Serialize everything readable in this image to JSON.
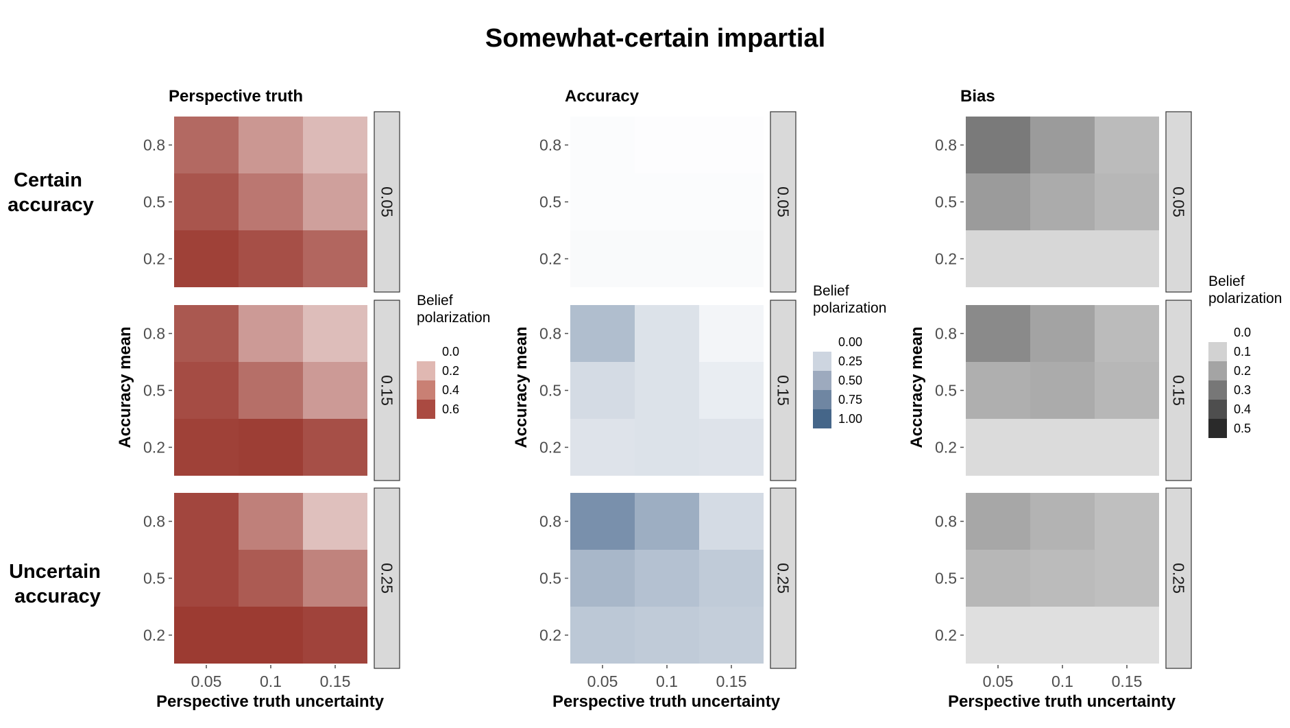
{
  "title": "Somewhat-certain impartial",
  "row_labels": [
    {
      "line1": "Certain",
      "line2": "accuracy"
    },
    {
      "line1": "Uncertain",
      "line2": "accuracy"
    }
  ],
  "chart_data": [
    {
      "type": "heatmap",
      "title": "Perspective truth",
      "xlabel": "Perspective truth uncertainty",
      "ylabel": "Accuracy mean",
      "x": [
        "0.05",
        "0.1",
        "0.15"
      ],
      "y": [
        "0.8",
        "0.5",
        "0.2"
      ],
      "facets": [
        "0.05",
        "0.15",
        "0.25"
      ],
      "legend": {
        "title_line1": "Belief",
        "title_line2": "polarization",
        "breaks": [
          "0.0",
          "0.2",
          "0.4",
          "0.6"
        ],
        "colors": [
          "#ffffff",
          "#e0b8b2",
          "#c98074",
          "#aa4a41"
        ]
      },
      "color_low": "#ffffff",
      "color_high": "#99352c",
      "vmin": 0,
      "vmax": 0.7,
      "values": [
        [
          [
            0.52,
            0.36,
            0.24
          ],
          [
            0.59,
            0.47,
            0.33
          ],
          [
            0.66,
            0.61,
            0.53
          ]
        ],
        [
          [
            0.58,
            0.35,
            0.23
          ],
          [
            0.62,
            0.5,
            0.35
          ],
          [
            0.66,
            0.67,
            0.61
          ]
        ],
        [
          [
            0.64,
            0.44,
            0.22
          ],
          [
            0.64,
            0.57,
            0.43
          ],
          [
            0.68,
            0.68,
            0.65
          ]
        ]
      ]
    },
    {
      "type": "heatmap",
      "title": "Accuracy",
      "xlabel": "Perspective truth uncertainty",
      "ylabel": "Accuracy mean",
      "x": [
        "0.05",
        "0.1",
        "0.15"
      ],
      "y": [
        "0.8",
        "0.5",
        "0.2"
      ],
      "facets": [
        "0.05",
        "0.15",
        "0.25"
      ],
      "legend": {
        "title_line1": "Belief",
        "title_line2": "polarization",
        "breaks": [
          "0.00",
          "0.25",
          "0.50",
          "0.75",
          "1.00"
        ],
        "colors": [
          "#ffffff",
          "#cdd5e0",
          "#9daabe",
          "#6f86a2",
          "#456689"
        ]
      },
      "color_low": "#ffffff",
      "color_high": "#3a5c85",
      "vmin": 0,
      "vmax": 1.0,
      "values": [
        [
          [
            0.02,
            0.01,
            0.01
          ],
          [
            0.02,
            0.02,
            0.02
          ],
          [
            0.03,
            0.03,
            0.03
          ]
        ],
        [
          [
            0.4,
            0.18,
            0.06
          ],
          [
            0.22,
            0.18,
            0.11
          ],
          [
            0.17,
            0.18,
            0.17
          ]
        ],
        [
          [
            0.68,
            0.5,
            0.22
          ],
          [
            0.44,
            0.38,
            0.32
          ],
          [
            0.34,
            0.32,
            0.3
          ]
        ]
      ]
    },
    {
      "type": "heatmap",
      "title": "Bias",
      "xlabel": "Perspective truth uncertainty",
      "ylabel": "Accuracy mean",
      "x": [
        "0.05",
        "0.1",
        "0.15"
      ],
      "y": [
        "0.8",
        "0.5",
        "0.2"
      ],
      "facets": [
        "0.05",
        "0.15",
        "0.25"
      ],
      "legend": {
        "title_line1": "Belief",
        "title_line2": "polarization",
        "breaks": [
          "0.0",
          "0.1",
          "0.2",
          "0.3",
          "0.4",
          "0.5"
        ],
        "colors": [
          "#ffffff",
          "#d2d2d2",
          "#a4a4a4",
          "#777777",
          "#4e4e4e",
          "#2a2a2a"
        ]
      },
      "color_low": "#ffffff",
      "color_high": "#222222",
      "vmin": 0,
      "vmax": 0.55,
      "values": [
        [
          [
            0.33,
            0.25,
            0.17
          ],
          [
            0.25,
            0.21,
            0.18
          ],
          [
            0.1,
            0.1,
            0.1
          ]
        ],
        [
          [
            0.29,
            0.23,
            0.17
          ],
          [
            0.2,
            0.21,
            0.18
          ],
          [
            0.09,
            0.09,
            0.09
          ]
        ],
        [
          [
            0.22,
            0.19,
            0.16
          ],
          [
            0.18,
            0.17,
            0.16
          ],
          [
            0.08,
            0.08,
            0.08
          ]
        ]
      ]
    }
  ]
}
